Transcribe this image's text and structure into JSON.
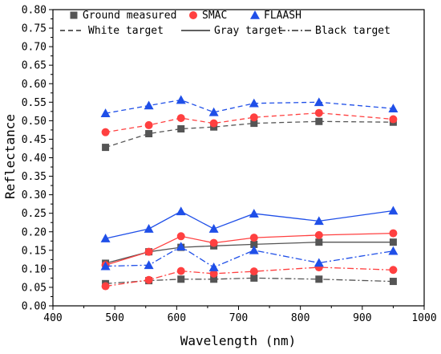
{
  "chart_data": {
    "type": "line",
    "xlabel": "Wavelength (nm)",
    "ylabel": "Reflectance",
    "xlim": [
      400,
      1000
    ],
    "ylim": [
      0.0,
      0.8
    ],
    "x_ticks": [
      "400",
      "500",
      "600",
      "700",
      "800",
      "900",
      "1000"
    ],
    "y_ticks": [
      "0.00",
      "0.05",
      "0.10",
      "0.15",
      "0.20",
      "0.25",
      "0.30",
      "0.35",
      "0.40",
      "0.45",
      "0.50",
      "0.55",
      "0.60",
      "0.65",
      "0.70",
      "0.75",
      "0.80"
    ],
    "grid": false,
    "legend_position": "top",
    "legend": {
      "markers": [
        {
          "label": "Ground measured",
          "marker": "square",
          "color": "#555555"
        },
        {
          "label": "SMAC",
          "marker": "circle",
          "color": "#ff4040"
        },
        {
          "label": "FLAASH",
          "marker": "triangle",
          "color": "#1f4fe8"
        }
      ],
      "lines": [
        {
          "label": "White target",
          "dash": "dashed"
        },
        {
          "label": "Gray target",
          "dash": "solid"
        },
        {
          "label": "Black target",
          "dash": "dashdot"
        }
      ]
    },
    "x": [
      485,
      555,
      607,
      660,
      725,
      830,
      950
    ],
    "series": [
      {
        "name": "Ground measured — White target",
        "marker": "square",
        "color": "#555555",
        "dash": "dashed",
        "values": [
          0.428,
          0.465,
          0.478,
          0.483,
          0.493,
          0.498,
          0.496
        ]
      },
      {
        "name": "SMAC — White target",
        "marker": "circle",
        "color": "#ff4040",
        "dash": "dashed",
        "values": [
          0.469,
          0.488,
          0.507,
          0.493,
          0.509,
          0.521,
          0.504
        ]
      },
      {
        "name": "FLAASH — White target",
        "marker": "triangle",
        "color": "#1f4fe8",
        "dash": "dashed",
        "values": [
          0.52,
          0.541,
          0.556,
          0.523,
          0.547,
          0.55,
          0.533
        ]
      },
      {
        "name": "Ground measured — Gray target",
        "marker": "square",
        "color": "#555555",
        "dash": "solid",
        "values": [
          0.115,
          0.146,
          0.158,
          0.162,
          0.166,
          0.172,
          0.172
        ]
      },
      {
        "name": "SMAC — Gray target",
        "marker": "circle",
        "color": "#ff4040",
        "dash": "solid",
        "values": [
          0.11,
          0.146,
          0.188,
          0.17,
          0.184,
          0.191,
          0.196
        ]
      },
      {
        "name": "FLAASH — Gray target",
        "marker": "triangle",
        "color": "#1f4fe8",
        "dash": "solid",
        "values": [
          0.182,
          0.208,
          0.255,
          0.208,
          0.249,
          0.229,
          0.257
        ]
      },
      {
        "name": "Ground measured — Black target",
        "marker": "square",
        "color": "#555555",
        "dash": "dashdot",
        "values": [
          0.06,
          0.068,
          0.072,
          0.072,
          0.075,
          0.072,
          0.066
        ]
      },
      {
        "name": "SMAC — Black target",
        "marker": "circle",
        "color": "#ff4040",
        "dash": "dashdot",
        "values": [
          0.053,
          0.07,
          0.094,
          0.087,
          0.093,
          0.104,
          0.097
        ]
      },
      {
        "name": "FLAASH — Black target",
        "marker": "triangle",
        "color": "#1f4fe8",
        "dash": "dashdot",
        "values": [
          0.107,
          0.11,
          0.16,
          0.104,
          0.15,
          0.116,
          0.148
        ]
      }
    ]
  }
}
